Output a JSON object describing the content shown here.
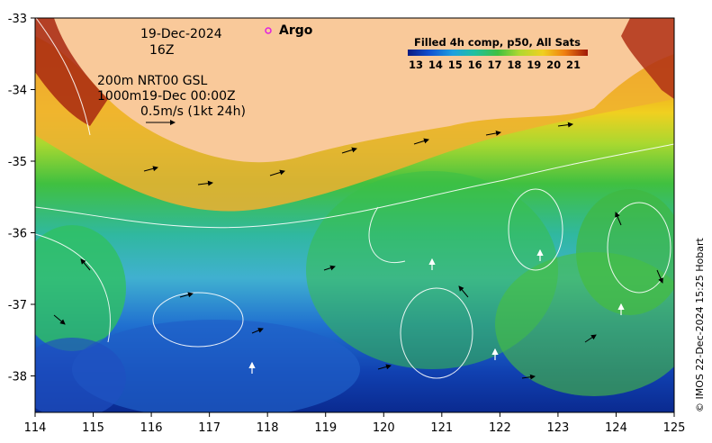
{
  "map": {
    "date_line": "19-Dec-2024",
    "time_line": "16Z",
    "legend_line1": "200m  NRT00 GSL",
    "legend_line2": "1000m19-Dec 00:00Z",
    "legend_line3": "0.5m/s (1kt 24h)",
    "argo_label": "Argo",
    "colorbar_title": "Filled 4h comp, p50, All Sats",
    "colorbar_ticks": [
      "13",
      "14",
      "15",
      "16",
      "17",
      "18",
      "19",
      "20",
      "21"
    ],
    "credit": "© IMOS 22-Dec-2024 15:25 Hobart",
    "x_ticks": [
      "114",
      "115",
      "116",
      "117",
      "118",
      "119",
      "120",
      "121",
      "122",
      "123",
      "124",
      "125"
    ],
    "y_ticks": [
      "-33",
      "-34",
      "-35",
      "-36",
      "-37",
      "-38"
    ],
    "colors": {
      "land": "#f9c99a",
      "argo": "#e020e0"
    }
  }
}
